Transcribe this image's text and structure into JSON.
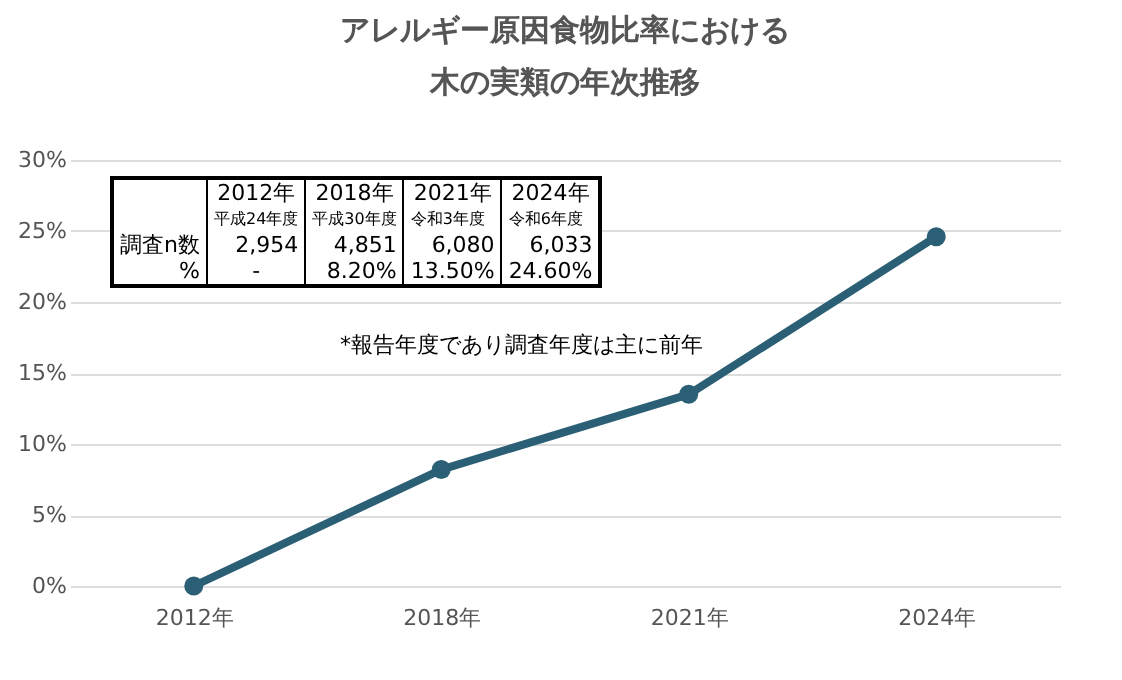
{
  "chart_data": {
    "type": "line",
    "title": "アレルギー原因食物比率における",
    "subtitle": "木の実類の年次推移",
    "categories": [
      "2012年",
      "2018年",
      "2021年",
      "2024年"
    ],
    "series": [
      {
        "color": "#2b5f75",
        "values": [
          0,
          8.2,
          13.5,
          24.6
        ]
      }
    ],
    "ylim": [
      0,
      30
    ],
    "yticks": [
      {
        "value": 0,
        "label": "0%"
      },
      {
        "value": 5,
        "label": "5%"
      },
      {
        "value": 10,
        "label": "10%"
      },
      {
        "value": 15,
        "label": "15%"
      },
      {
        "value": 20,
        "label": "20%"
      },
      {
        "value": 25,
        "label": "25%"
      },
      {
        "value": 30,
        "label": "30%"
      }
    ],
    "grid": "y",
    "marker": "circle",
    "line_style": "solid",
    "annotations": [
      "平成24年度",
      "平成30年度",
      "令和3年度",
      "令和6年度",
      "調査n数",
      "2,954",
      "4,851",
      "6,080",
      "6,033",
      "%",
      "-",
      "8.20%",
      "13.50%",
      "24.60%",
      "*報告年度であり調査年度は主に前年"
    ]
  }
}
